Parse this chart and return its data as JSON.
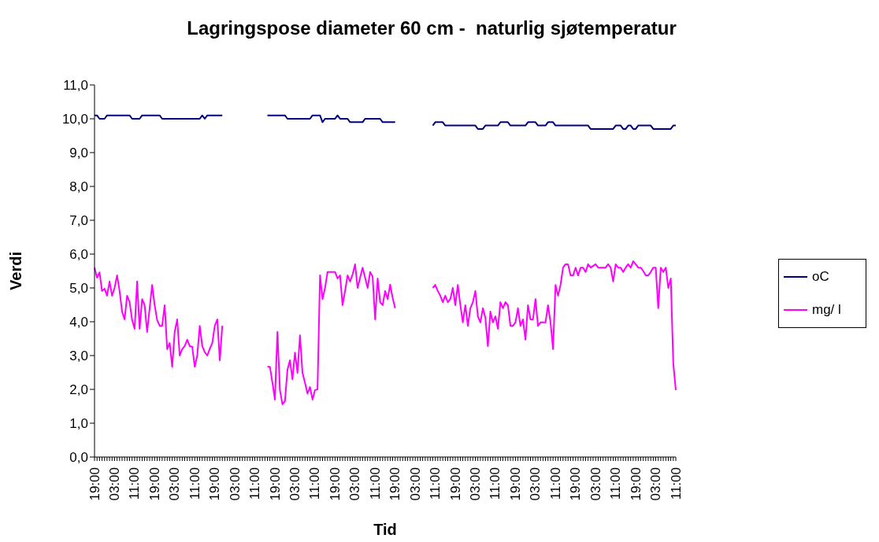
{
  "chart_data": {
    "type": "line",
    "title": "Lagringspose diameter 60 cm -  naturlig sjøtemperatur",
    "xlabel": "Tid",
    "ylabel": "Verdi",
    "categories": [
      "19:00",
      null,
      null,
      null,
      null,
      null,
      null,
      null,
      "03:00",
      null,
      null,
      null,
      null,
      null,
      null,
      null,
      "11:00",
      null,
      null,
      null,
      null,
      null,
      null,
      null,
      "19:00",
      null,
      null,
      null,
      null,
      null,
      null,
      null,
      "03:00",
      null,
      null,
      null,
      null,
      null,
      null,
      null,
      "11:00",
      null,
      null,
      null,
      null,
      null,
      null,
      null,
      "19:00",
      null,
      null,
      null,
      null,
      null,
      null,
      null,
      "03:00",
      null,
      null,
      null,
      null,
      null,
      null,
      null,
      "11:00",
      null,
      null,
      null,
      null,
      null,
      null,
      null,
      "19:00",
      null,
      null,
      null,
      null,
      null,
      null,
      null,
      "03:00",
      null,
      null,
      null,
      null,
      null,
      null,
      null,
      "11:00",
      null,
      null,
      null,
      null,
      null,
      null,
      null,
      "19:00",
      null,
      null,
      null,
      null,
      null,
      null,
      null,
      "03:00",
      null,
      null,
      null,
      null,
      null,
      null,
      null,
      "11:00",
      null,
      null,
      null,
      null,
      null,
      null,
      null,
      "19:00",
      null,
      null,
      null,
      null,
      null,
      null,
      null,
      "03:00",
      null,
      null,
      null,
      null,
      null,
      null,
      null,
      "11:00",
      null,
      null,
      null,
      null,
      null,
      null,
      null,
      "19:00",
      null,
      null,
      null,
      null,
      null,
      null,
      null,
      "03:00",
      null,
      null,
      null,
      null,
      null,
      null,
      null,
      "11:00",
      null,
      null,
      null,
      null,
      null,
      null,
      null,
      "19:00",
      null,
      null,
      null,
      null,
      null,
      null,
      null,
      "03:00",
      null,
      null,
      null,
      null,
      null,
      null,
      null,
      "11:00",
      null,
      null,
      null,
      null,
      null,
      null,
      null,
      "19:00",
      null,
      null,
      null,
      null,
      null,
      null,
      null,
      "03:00",
      null,
      null,
      null,
      null,
      null,
      null,
      null,
      "11:00",
      null,
      null,
      null,
      null,
      null,
      null,
      null,
      "19:00",
      null,
      null,
      null,
      null,
      null,
      null,
      null,
      "03:00",
      null,
      null,
      null,
      null,
      null,
      null,
      null,
      "11:00"
    ],
    "ylim": [
      0,
      11
    ],
    "yticks": [
      {
        "value": 0,
        "label": "0,0"
      },
      {
        "value": 1,
        "label": "1,0"
      },
      {
        "value": 2,
        "label": "2,0"
      },
      {
        "value": 3,
        "label": "3,0"
      },
      {
        "value": 4,
        "label": "4,0"
      },
      {
        "value": 5,
        "label": "5,0"
      },
      {
        "value": 6,
        "label": "6,0"
      },
      {
        "value": 7,
        "label": "7,0"
      },
      {
        "value": 8,
        "label": "8,0"
      },
      {
        "value": 9,
        "label": "9,0"
      },
      {
        "value": 10,
        "label": "10,0"
      },
      {
        "value": 11,
        "label": "11,0"
      }
    ],
    "legend": "right",
    "marker": "none",
    "line_style": "solid",
    "series": [
      {
        "name": "oC",
        "color": "#000080",
        "values": [
          10.1,
          10.1,
          10.0,
          10.0,
          10.0,
          10.1,
          10.1,
          10.1,
          10.1,
          10.1,
          10.1,
          10.1,
          10.1,
          10.1,
          10.1,
          10.0,
          10.0,
          10.0,
          10.0,
          10.1,
          10.1,
          10.1,
          10.1,
          10.1,
          10.1,
          10.1,
          10.1,
          10.0,
          10.0,
          10.0,
          10.0,
          10.0,
          10.0,
          10.0,
          10.0,
          10.0,
          10.0,
          10.0,
          10.0,
          10.0,
          10.0,
          10.0,
          10.0,
          10.1,
          10.0,
          10.1,
          10.1,
          10.1,
          10.1,
          10.1,
          10.1,
          10.1,
          null,
          null,
          null,
          null,
          null,
          null,
          null,
          null,
          null,
          null,
          null,
          null,
          null,
          null,
          null,
          null,
          null,
          10.1,
          10.1,
          10.1,
          10.1,
          10.1,
          10.1,
          10.1,
          10.1,
          10.0,
          10.0,
          10.0,
          10.0,
          10.0,
          10.0,
          10.0,
          10.0,
          10.0,
          10.0,
          10.1,
          10.1,
          10.1,
          10.1,
          9.9,
          10.0,
          10.0,
          10.0,
          10.0,
          10.0,
          10.1,
          10.0,
          10.0,
          10.0,
          10.0,
          9.9,
          9.9,
          9.9,
          9.9,
          9.9,
          9.9,
          10.0,
          10.0,
          10.0,
          10.0,
          10.0,
          10.0,
          10.0,
          9.9,
          9.9,
          9.9,
          9.9,
          9.9,
          9.9,
          null,
          null,
          null,
          null,
          null,
          null,
          null,
          null,
          null,
          null,
          null,
          null,
          null,
          null,
          9.8,
          9.9,
          9.9,
          9.9,
          9.9,
          9.8,
          9.8,
          9.8,
          9.8,
          9.8,
          9.8,
          9.8,
          9.8,
          9.8,
          9.8,
          9.8,
          9.8,
          9.8,
          9.7,
          9.7,
          9.7,
          9.8,
          9.8,
          9.8,
          9.8,
          9.8,
          9.8,
          9.9,
          9.9,
          9.9,
          9.9,
          9.8,
          9.8,
          9.8,
          9.8,
          9.8,
          9.8,
          9.8,
          9.9,
          9.9,
          9.9,
          9.9,
          9.8,
          9.8,
          9.8,
          9.8,
          9.9,
          9.9,
          9.9,
          9.8,
          9.8,
          9.8,
          9.8,
          9.8,
          9.8,
          9.8,
          9.8,
          9.8,
          9.8,
          9.8,
          9.8,
          9.8,
          9.8,
          9.7,
          9.7,
          9.7,
          9.7,
          9.7,
          9.7,
          9.7,
          9.7,
          9.7,
          9.7,
          9.8,
          9.8,
          9.8,
          9.7,
          9.7,
          9.8,
          9.8,
          9.7,
          9.7,
          9.8,
          9.8,
          9.8,
          9.8,
          9.8,
          9.8,
          9.7,
          9.7,
          9.7,
          9.7,
          9.7,
          9.7,
          9.7,
          9.7,
          9.8,
          9.8
        ]
      },
      {
        "name": "mg/ l",
        "color": "#ff00ff",
        "values": [
          5.6,
          5.3,
          5.46,
          4.91,
          4.98,
          4.77,
          5.19,
          4.77,
          5.0,
          5.37,
          4.91,
          4.3,
          4.07,
          4.77,
          4.58,
          4.05,
          3.79,
          5.19,
          3.79,
          4.67,
          4.49,
          3.7,
          4.4,
          5.09,
          4.49,
          4.05,
          3.88,
          3.88,
          4.49,
          3.19,
          3.37,
          2.67,
          3.7,
          4.07,
          3.0,
          3.19,
          3.28,
          3.47,
          3.28,
          3.26,
          2.67,
          3.0,
          3.88,
          3.28,
          3.1,
          3.0,
          3.2,
          3.37,
          3.88,
          4.07,
          2.86,
          3.88,
          null,
          null,
          null,
          null,
          null,
          null,
          null,
          null,
          null,
          null,
          null,
          null,
          null,
          null,
          null,
          null,
          null,
          2.67,
          2.67,
          2.2,
          1.7,
          3.7,
          1.98,
          1.56,
          1.65,
          2.58,
          2.86,
          2.3,
          3.09,
          2.49,
          3.6,
          2.49,
          2.2,
          1.88,
          2.07,
          1.7,
          1.98,
          2.0,
          5.37,
          4.67,
          5.0,
          5.47,
          5.47,
          5.47,
          5.47,
          5.28,
          5.37,
          4.49,
          4.91,
          5.37,
          5.19,
          5.4,
          5.7,
          5.0,
          5.3,
          5.6,
          5.3,
          5.0,
          5.47,
          5.33,
          4.07,
          5.28,
          4.58,
          4.49,
          4.91,
          4.67,
          5.1,
          4.7,
          4.4,
          null,
          null,
          null,
          null,
          null,
          null,
          null,
          null,
          null,
          null,
          null,
          null,
          null,
          null,
          5.0,
          5.09,
          4.91,
          4.77,
          4.58,
          4.77,
          4.58,
          4.67,
          5.0,
          4.49,
          5.09,
          4.5,
          3.98,
          4.49,
          3.88,
          4.4,
          4.58,
          4.91,
          4.16,
          3.98,
          4.4,
          4.12,
          3.28,
          4.3,
          3.98,
          4.16,
          3.79,
          4.58,
          4.4,
          4.58,
          4.49,
          3.88,
          3.88,
          3.98,
          4.4,
          3.88,
          4.07,
          3.47,
          4.49,
          4.07,
          4.07,
          4.67,
          3.88,
          3.98,
          3.98,
          3.98,
          4.49,
          3.98,
          3.19,
          5.09,
          4.77,
          5.09,
          5.6,
          5.7,
          5.7,
          5.37,
          5.37,
          5.6,
          5.37,
          5.6,
          5.6,
          5.47,
          5.7,
          5.6,
          5.65,
          5.7,
          5.6,
          5.6,
          5.6,
          5.6,
          5.7,
          5.6,
          5.19,
          5.7,
          5.6,
          5.6,
          5.47,
          5.6,
          5.7,
          5.6,
          5.79,
          5.7,
          5.6,
          5.6,
          5.5,
          5.37,
          5.37,
          5.47,
          5.6,
          5.6,
          4.4,
          5.6,
          5.47,
          5.6,
          5.0,
          5.28,
          2.77,
          1.98
        ]
      }
    ]
  }
}
